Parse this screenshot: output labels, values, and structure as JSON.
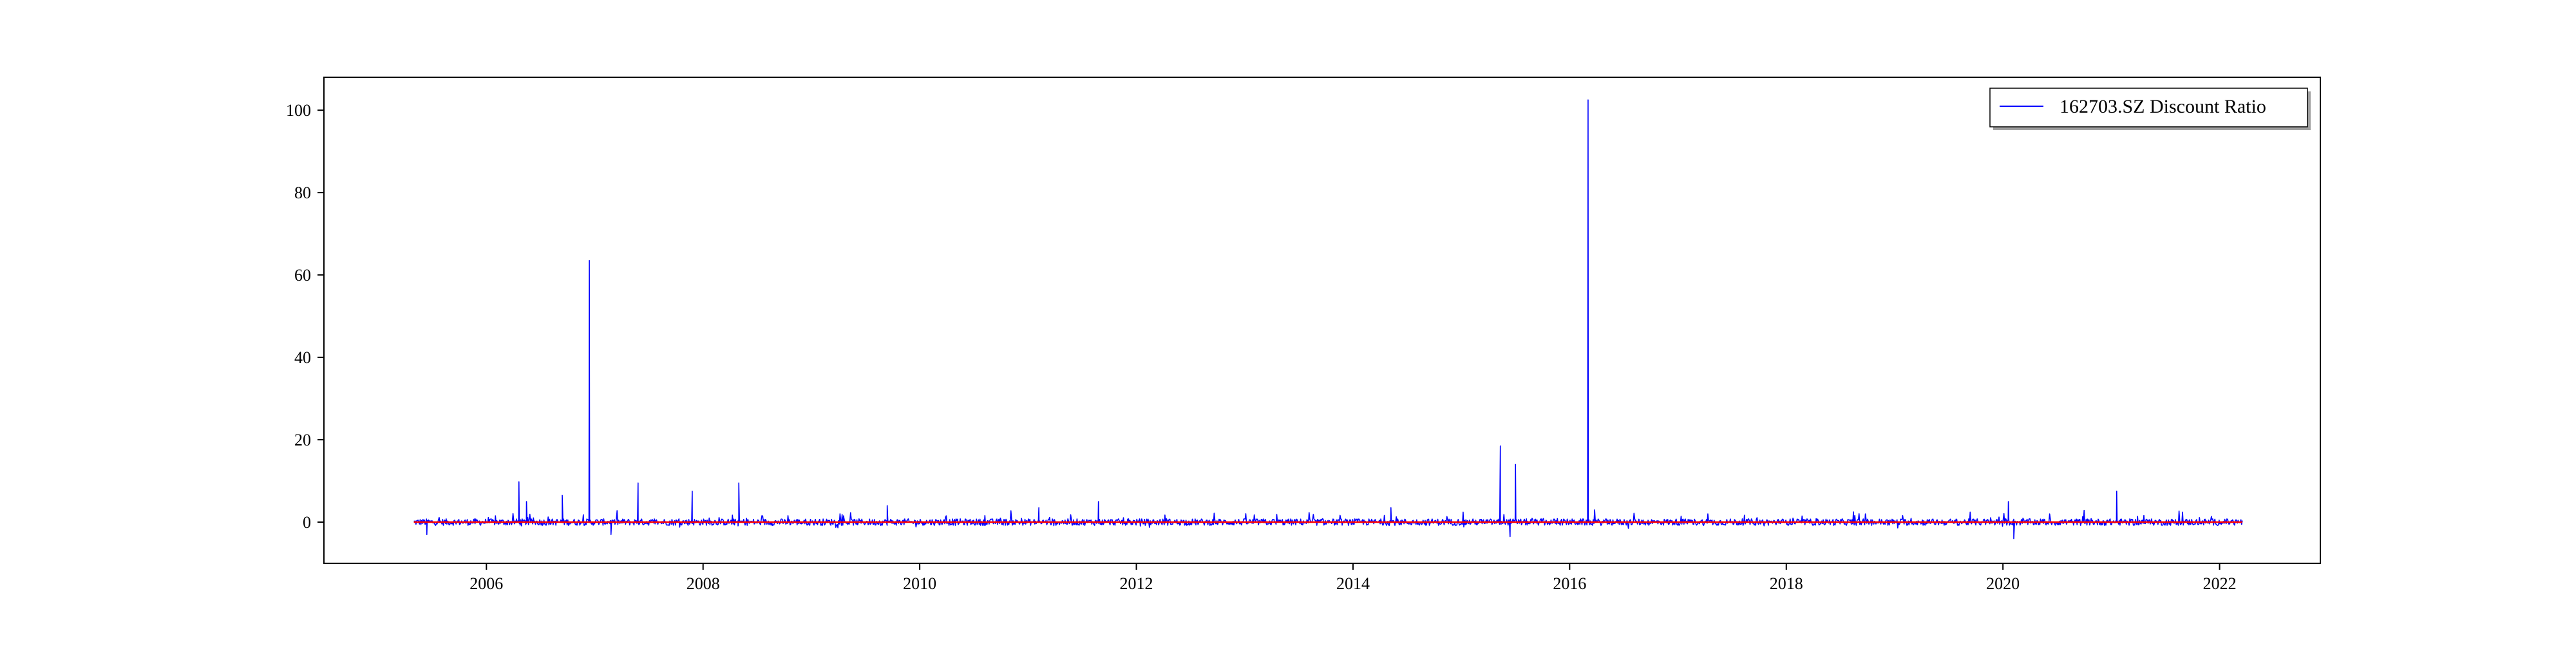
{
  "chart_data": {
    "type": "line",
    "title": "",
    "xlabel": "",
    "ylabel": "",
    "xlim": [
      2004.5,
      2022.93
    ],
    "ylim": [
      -10,
      108
    ],
    "x_ticks": [
      2006,
      2008,
      2010,
      2012,
      2014,
      2016,
      2018,
      2020,
      2022
    ],
    "y_ticks": [
      0,
      20,
      40,
      60,
      80,
      100
    ],
    "grid": false,
    "legend_position": "top-right",
    "series": [
      {
        "name": "162703.SZ Discount Ratio",
        "color": "#0000ff",
        "x_start": 2005.33,
        "x_end": 2022.21,
        "baseline_value": 0,
        "noise_amplitude": 0.8,
        "spikes": [
          {
            "x": 2005.45,
            "y": -3.0
          },
          {
            "x": 2006.3,
            "y": 9.8
          },
          {
            "x": 2006.37,
            "y": 5.0
          },
          {
            "x": 2006.7,
            "y": 6.5
          },
          {
            "x": 2006.95,
            "y": 63.5
          },
          {
            "x": 2007.15,
            "y": -3.0
          },
          {
            "x": 2007.4,
            "y": 9.5
          },
          {
            "x": 2007.9,
            "y": 7.5
          },
          {
            "x": 2008.33,
            "y": 9.5
          },
          {
            "x": 2009.7,
            "y": 4.0
          },
          {
            "x": 2011.1,
            "y": 3.5
          },
          {
            "x": 2011.65,
            "y": 5.0
          },
          {
            "x": 2014.35,
            "y": 3.5
          },
          {
            "x": 2015.36,
            "y": 18.5
          },
          {
            "x": 2015.45,
            "y": -3.5
          },
          {
            "x": 2015.5,
            "y": 14.0
          },
          {
            "x": 2016.17,
            "y": 102.5
          },
          {
            "x": 2020.05,
            "y": 5.0
          },
          {
            "x": 2020.1,
            "y": -4.0
          },
          {
            "x": 2021.05,
            "y": 7.5
          }
        ]
      },
      {
        "name": "",
        "color": "#ff0000",
        "type": "line",
        "x_start": 2005.33,
        "x_end": 2022.21,
        "values": [
          0,
          0
        ]
      }
    ]
  }
}
